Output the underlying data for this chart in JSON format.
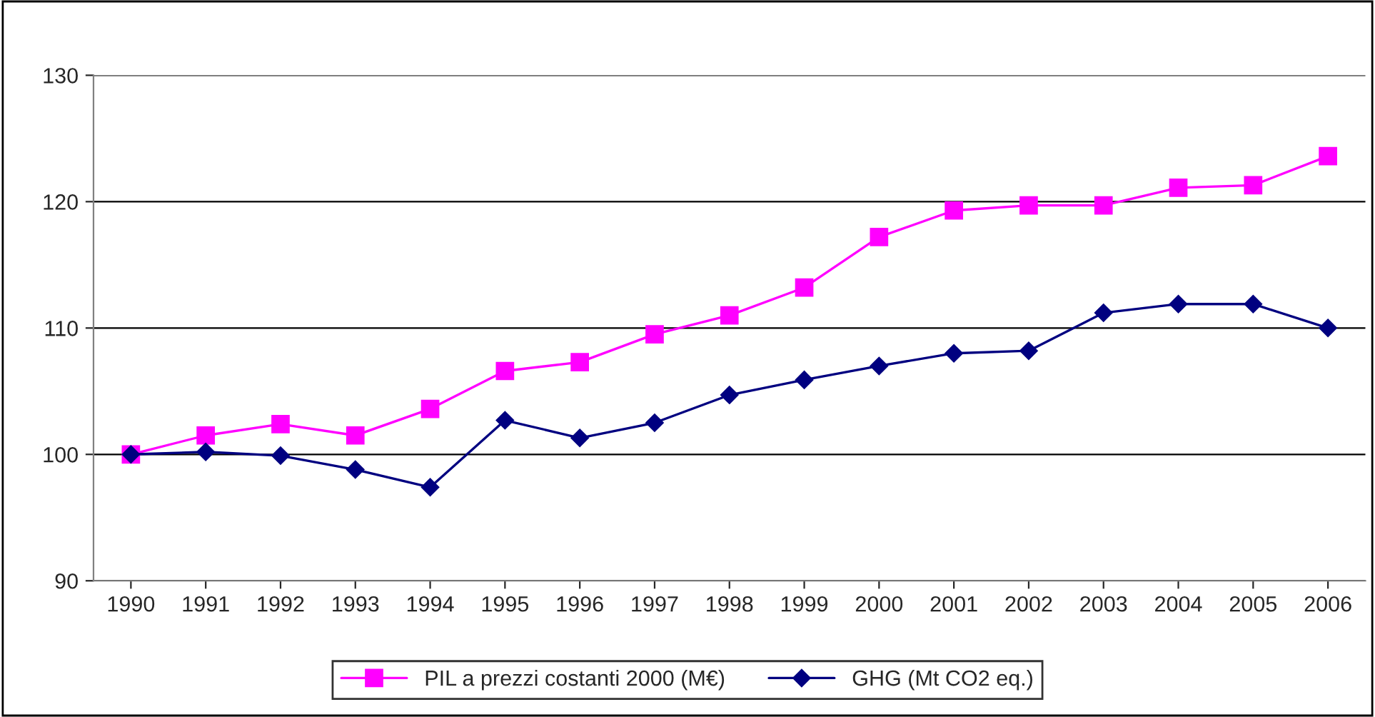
{
  "chart_data": {
    "type": "line",
    "categories": [
      "1990",
      "1991",
      "1992",
      "1993",
      "1994",
      "1995",
      "1996",
      "1997",
      "1998",
      "1999",
      "2000",
      "2001",
      "2002",
      "2003",
      "2004",
      "2005",
      "2006"
    ],
    "series": [
      {
        "name": "PIL a prezzi costanti 2000 (M€)",
        "color": "#ff00ff",
        "marker": "square",
        "values": [
          100,
          101.5,
          102.4,
          101.5,
          103.6,
          106.6,
          107.3,
          109.5,
          111.0,
          113.2,
          117.2,
          119.3,
          119.7,
          119.7,
          121.1,
          121.3,
          123.6
        ]
      },
      {
        "name": "GHG (Mt CO2 eq.)",
        "color": "#000080",
        "marker": "diamond",
        "values": [
          100,
          100.2,
          99.9,
          98.8,
          97.4,
          102.7,
          101.3,
          102.5,
          104.7,
          105.9,
          107.0,
          108.0,
          108.2,
          111.2,
          111.9,
          111.9,
          110.0
        ]
      }
    ],
    "ylim": [
      90,
      130
    ],
    "yticks": [
      90,
      100,
      110,
      120,
      130
    ],
    "grid": "y",
    "legend": "bottom",
    "line_style": "solid"
  }
}
